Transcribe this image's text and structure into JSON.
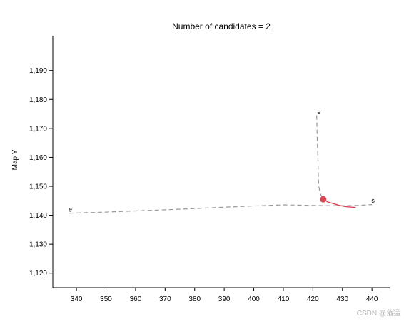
{
  "chart_data": {
    "type": "line",
    "title": "Number of candidates = 2",
    "xlabel": "",
    "ylabel": "Map Y",
    "xlim": [
      332,
      446
    ],
    "ylim": [
      1115,
      1202
    ],
    "x_ticks": [
      340,
      350,
      360,
      370,
      380,
      390,
      400,
      410,
      420,
      430,
      440
    ],
    "x_tick_labels": [
      "340",
      "350",
      "360",
      "370",
      "380",
      "390",
      "400",
      "410",
      "420",
      "430",
      "440"
    ],
    "y_ticks": [
      1120,
      1130,
      1140,
      1150,
      1160,
      1170,
      1180,
      1190
    ],
    "y_tick_labels": [
      "1,120",
      "1,130",
      "1,140",
      "1,150",
      "1,160",
      "1,170",
      "1,180",
      "1,190"
    ],
    "grid": false,
    "series": [
      {
        "color": "#999999",
        "dashed": true,
        "points": [
          [
            337.5,
            1140.7
          ],
          [
            350,
            1141.1
          ],
          [
            360,
            1141.5
          ],
          [
            370,
            1141.9
          ],
          [
            380,
            1142.3
          ],
          [
            390,
            1142.8
          ],
          [
            400,
            1143.2
          ],
          [
            410,
            1143.6
          ],
          [
            415,
            1143.5
          ],
          [
            420,
            1143.4
          ],
          [
            425,
            1143.3
          ],
          [
            430,
            1143.3
          ],
          [
            435,
            1143.4
          ],
          [
            440,
            1143.7
          ]
        ]
      },
      {
        "color": "#999999",
        "dashed": true,
        "points": [
          [
            421.3,
            1174.5
          ],
          [
            421.4,
            1170
          ],
          [
            421.5,
            1165
          ],
          [
            421.7,
            1160
          ],
          [
            421.8,
            1155
          ],
          [
            422,
            1150
          ],
          [
            422.5,
            1147.5
          ],
          [
            423.5,
            1145.5
          ]
        ]
      },
      {
        "color": "#d94452",
        "dashed": false,
        "points": [
          [
            423.5,
            1145.5
          ],
          [
            425,
            1144.6
          ],
          [
            427,
            1144.0
          ],
          [
            429,
            1143.4
          ],
          [
            431,
            1143.0
          ],
          [
            433,
            1142.8
          ],
          [
            434.5,
            1142.7
          ]
        ]
      }
    ],
    "markers": [
      {
        "x": 423.5,
        "y": 1145.5,
        "color": "#d94452"
      }
    ],
    "annotations": [
      {
        "text": "e",
        "x": 337.3,
        "y": 1141.3
      },
      {
        "text": "e",
        "x": 421.5,
        "y": 1174.9
      },
      {
        "text": "s",
        "x": 439.8,
        "y": 1144.3
      }
    ]
  },
  "watermark": "CSDN @落猛"
}
